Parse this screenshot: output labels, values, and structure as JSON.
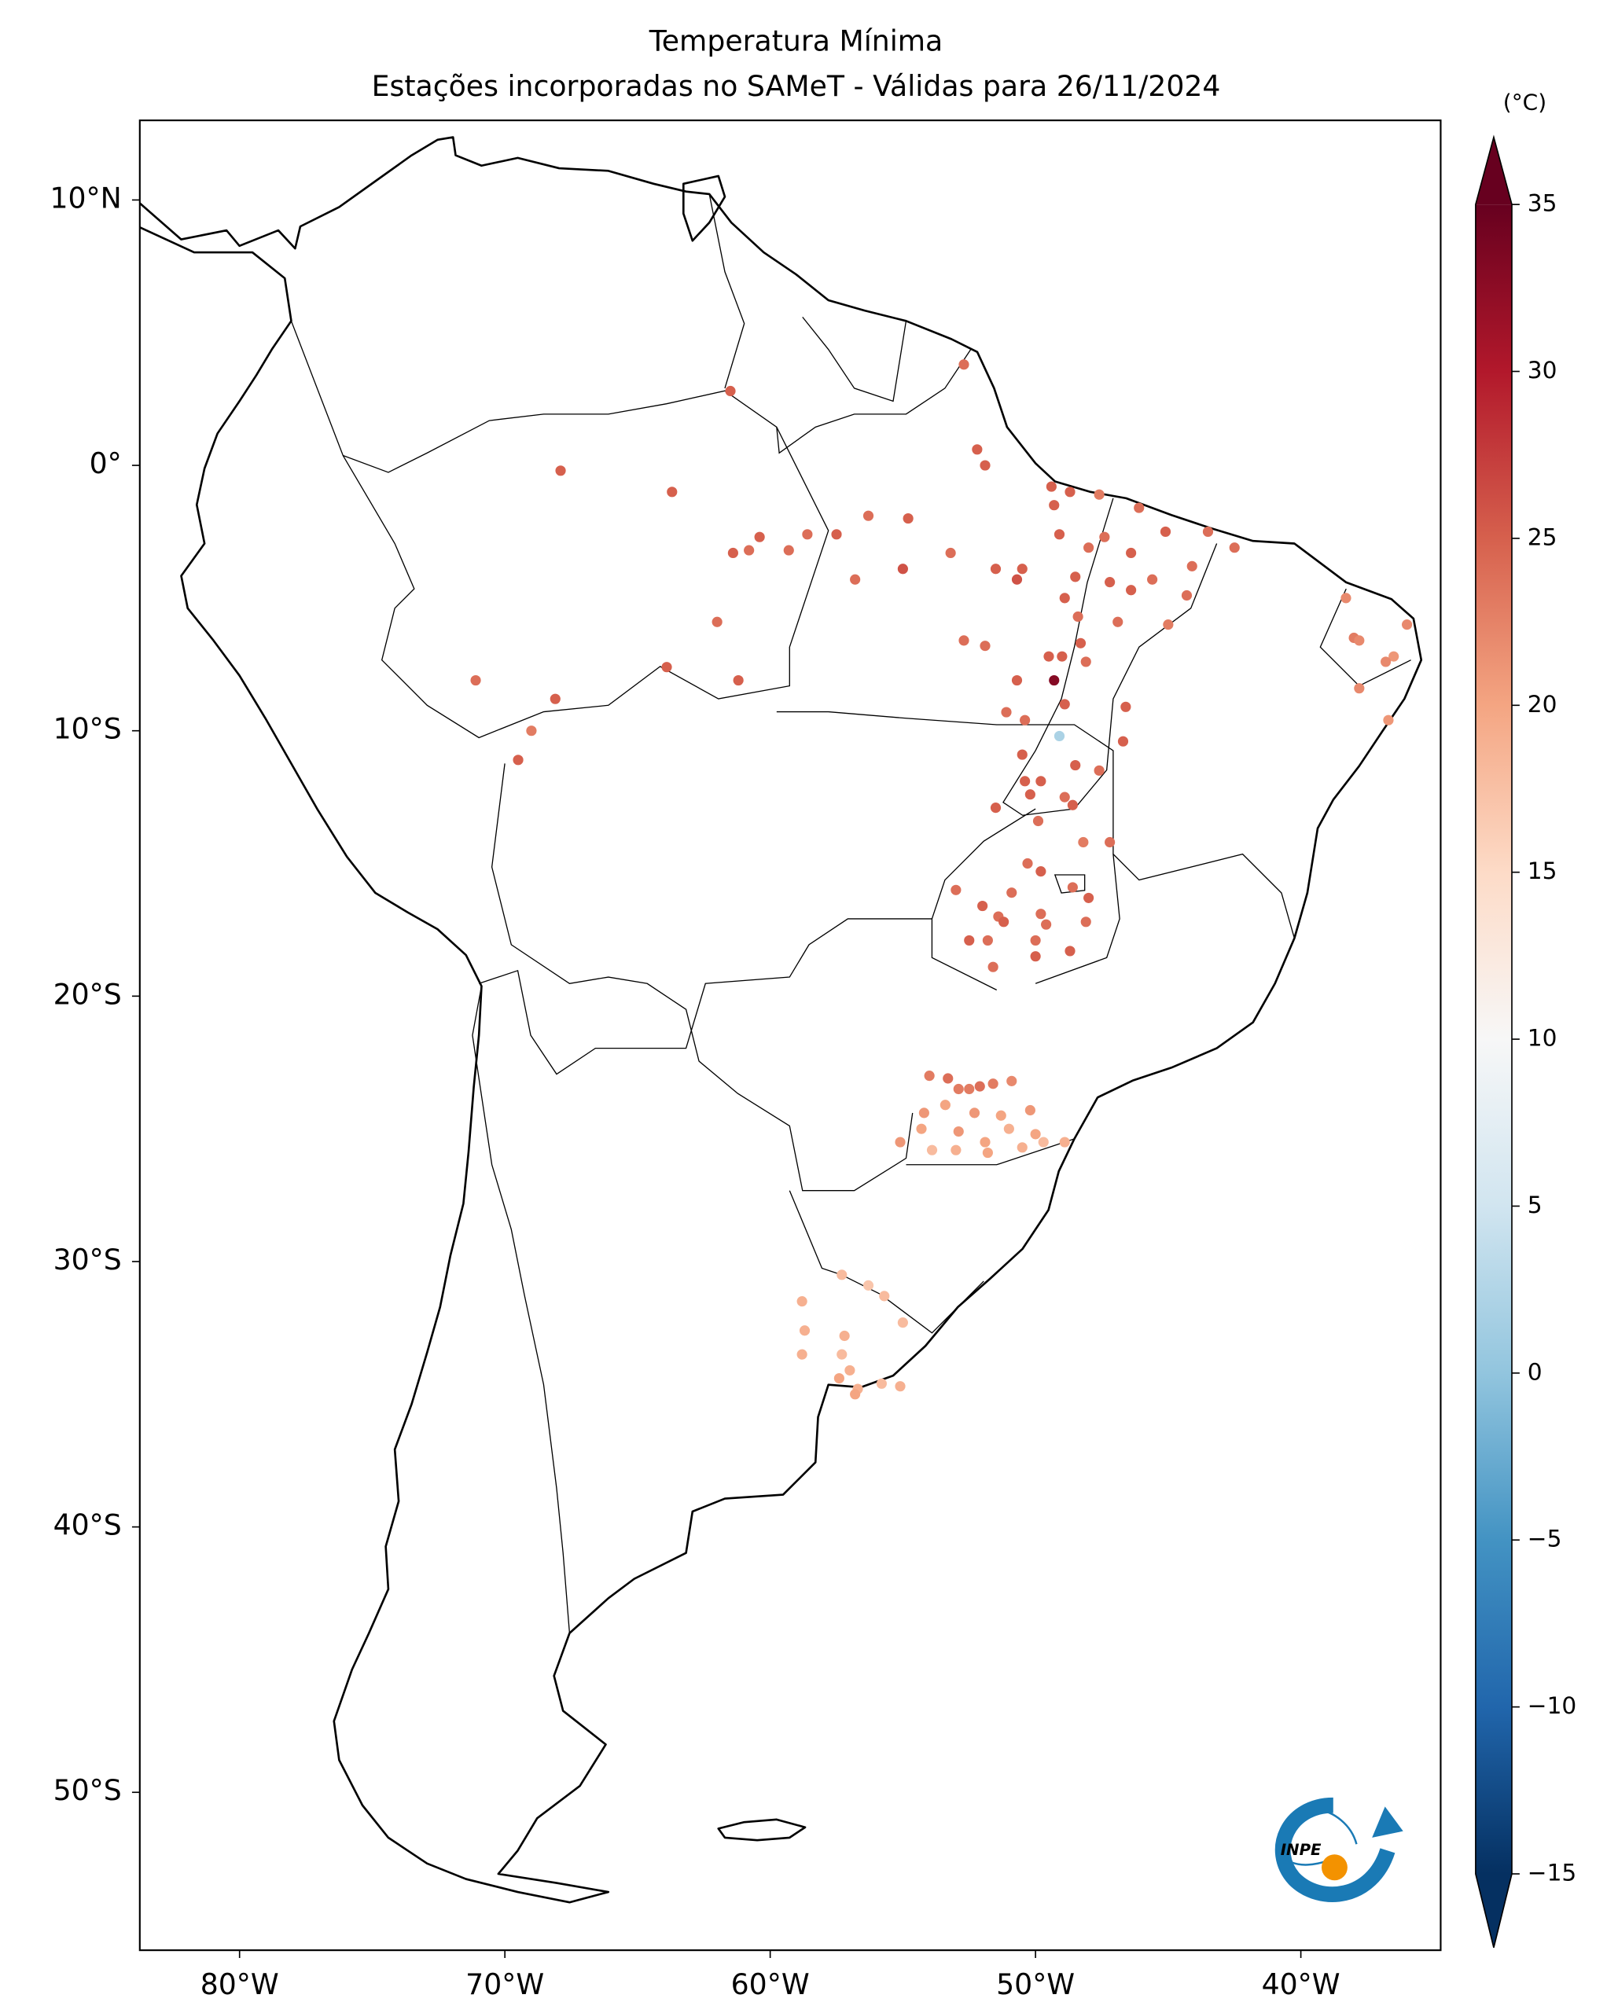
{
  "chart_data": {
    "type": "scatter-map",
    "title": "Temperatura Mínima",
    "subtitle": "Estações incorporadas no SAMeT - Válidas para 26/11/2024",
    "logo_text": "INPE",
    "xlim": [
      -83.76,
      -34.73
    ],
    "ylim": [
      -55.95,
      13.0
    ],
    "xticks": [
      {
        "value": -80,
        "label": "80°W"
      },
      {
        "value": -70,
        "label": "70°W"
      },
      {
        "value": -60,
        "label": "60°W"
      },
      {
        "value": -50,
        "label": "50°W"
      },
      {
        "value": -40,
        "label": "40°W"
      }
    ],
    "yticks": [
      {
        "value": 10,
        "label": "10°N"
      },
      {
        "value": 0,
        "label": "0°"
      },
      {
        "value": -10,
        "label": "10°S"
      },
      {
        "value": -20,
        "label": "20°S"
      },
      {
        "value": -30,
        "label": "30°S"
      },
      {
        "value": -40,
        "label": "40°S"
      },
      {
        "value": -50,
        "label": "50°S"
      }
    ],
    "colorbar": {
      "label": "(°C)",
      "lim": [
        -15,
        35
      ],
      "ticks": [
        {
          "value": -15,
          "label": "−15"
        },
        {
          "value": -10,
          "label": "−10"
        },
        {
          "value": -5,
          "label": "−5"
        },
        0,
        5,
        10,
        15,
        20,
        25,
        30,
        35
      ],
      "colors": [
        "#053061",
        "#2166ac",
        "#4393c3",
        "#92c5de",
        "#d1e5f0",
        "#f7f7f7",
        "#fddbc7",
        "#f4a582",
        "#d6604d",
        "#b2182b",
        "#67001f"
      ]
    },
    "stations": {
      "lon": [
        -61.5,
        -67.9,
        -63.7,
        -60.4,
        -61.4,
        -60.8,
        -59.3,
        -58.6,
        -57.5,
        -56.3,
        -54.8,
        -55.0,
        -53.2,
        -51.5,
        -50.5,
        -50.7,
        -56.8,
        -62.0,
        -61.2,
        -63.9,
        -71.1,
        -68.1,
        -69.0,
        -69.5,
        -52.7,
        -52.2,
        -51.9,
        -49.4,
        -48.7,
        -47.6,
        -46.1,
        -49.3,
        -49.1,
        -48.0,
        -47.4,
        -46.4,
        -45.1,
        -43.5,
        -42.5,
        -48.5,
        -47.2,
        -45.6,
        -44.1,
        -44.3,
        -46.4,
        -48.9,
        -48.4,
        -46.9,
        -45.0,
        -48.3,
        -52.7,
        -51.9,
        -49.5,
        -49.0,
        -48.1,
        -49.3,
        -50.7,
        -48.9,
        -46.6,
        -51.1,
        -50.4,
        -46.7,
        -49.1,
        -50.5,
        -50.4,
        -48.5,
        -47.6,
        -49.8,
        -51.5,
        -50.2,
        -48.9,
        -48.6,
        -49.9,
        -38.3,
        -38.0,
        -37.8,
        -36.5,
        -36.8,
        -36.0,
        -37.8,
        -36.7,
        -47.2,
        -48.2,
        -50.3,
        -49.8,
        -53.0,
        -50.9,
        -48.6,
        -48.0,
        -52.0,
        -51.4,
        -51.2,
        -49.8,
        -49.6,
        -48.1,
        -52.5,
        -51.8,
        -50.0,
        -48.7,
        -50.0,
        -51.6,
        -54.0,
        -53.3,
        -52.9,
        -52.5,
        -52.1,
        -51.6,
        -50.9,
        -53.4,
        -54.2,
        -52.3,
        -51.3,
        -50.2,
        -54.3,
        -52.9,
        -51.9,
        -51.0,
        -50.0,
        -55.1,
        -53.9,
        -53.0,
        -51.8,
        -50.5,
        -49.7,
        -48.9,
        -58.8,
        -57.3,
        -56.3,
        -55.7,
        -58.7,
        -57.2,
        -55.0,
        -58.8,
        -57.3,
        -57.0,
        -57.4,
        -56.7,
        -55.8,
        -55.1,
        -56.8
      ],
      "lat": [
        2.8,
        -0.2,
        -1.0,
        -2.7,
        -3.3,
        -3.2,
        -3.2,
        -2.6,
        -2.6,
        -1.9,
        -2.0,
        -3.9,
        -3.3,
        -3.9,
        -3.9,
        -4.3,
        -4.3,
        -5.9,
        -8.1,
        -7.6,
        -8.1,
        -8.8,
        -10.0,
        -11.1,
        3.8,
        0.6,
        0,
        -0.8,
        -1.0,
        -1.1,
        -1.6,
        -1.5,
        -2.6,
        -3.1,
        -2.7,
        -3.3,
        -2.5,
        -2.5,
        -3.1,
        -4.2,
        -4.4,
        -4.3,
        -3.8,
        -4.9,
        -4.7,
        -5.0,
        -5.7,
        -5.9,
        -6.0,
        -6.7,
        -6.6,
        -6.8,
        -7.2,
        -7.2,
        -7.4,
        -8.1,
        -8.1,
        -9.0,
        -9.1,
        -9.3,
        -9.6,
        -10.4,
        -10.2,
        -10.9,
        -11.9,
        -11.3,
        -11.5,
        -11.9,
        -12.9,
        -12.4,
        -12.5,
        -12.8,
        -13.4,
        -5.0,
        -6.5,
        -6.6,
        -7.2,
        -7.4,
        -6.0,
        -8.4,
        -9.6,
        -14.2,
        -14.2,
        -15.0,
        -15.3,
        -16.0,
        -16.1,
        -15.9,
        -16.3,
        -16.6,
        -17.0,
        -17.2,
        -16.9,
        -17.3,
        -17.2,
        -17.9,
        -17.9,
        -17.9,
        -18.3,
        -18.5,
        -18.9,
        -23.0,
        -23.1,
        -23.5,
        -23.5,
        -23.4,
        -23.3,
        -23.2,
        -24.1,
        -24.4,
        -24.4,
        -24.5,
        -24.3,
        -25.0,
        -25.1,
        -25.5,
        -25.0,
        -25.2,
        -25.5,
        -25.8,
        -25.8,
        -25.9,
        -25.7,
        -25.5,
        -25.5,
        -31.5,
        -30.5,
        -30.9,
        -31.3,
        -32.6,
        -32.8,
        -32.3,
        -33.5,
        -33.5,
        -34.1,
        -34.4,
        -34.8,
        -34.6,
        -34.7,
        -35.0
      ],
      "values": [
        25,
        25,
        25,
        25,
        25,
        24,
        24,
        24,
        25,
        24,
        25,
        26,
        24,
        25,
        25,
        26,
        24,
        24,
        25,
        25,
        24,
        25,
        23,
        25,
        24,
        25,
        25,
        25,
        25,
        23,
        24,
        25,
        25,
        24,
        24,
        25,
        25,
        24,
        24,
        25,
        25,
        24,
        24,
        24,
        25,
        25,
        24,
        24,
        23,
        25,
        24,
        24,
        25,
        25,
        24,
        33,
        25,
        25,
        25,
        24,
        24,
        25,
        2,
        25,
        25,
        25,
        24,
        25,
        25,
        25,
        24,
        25,
        24,
        22,
        23,
        22,
        21,
        22,
        22,
        22,
        21,
        24,
        23,
        24,
        25,
        24,
        24,
        24,
        25,
        25,
        24,
        25,
        24,
        24,
        24,
        25,
        24,
        24,
        25,
        25,
        24,
        23,
        24,
        23,
        23,
        24,
        23,
        22,
        20,
        21,
        21,
        20,
        21,
        20,
        21,
        20,
        19,
        20,
        21,
        18,
        19,
        20,
        19,
        18,
        19,
        19,
        18,
        17,
        18,
        19,
        19,
        18,
        19,
        18,
        19,
        20,
        19,
        18,
        19,
        20
      ]
    }
  }
}
